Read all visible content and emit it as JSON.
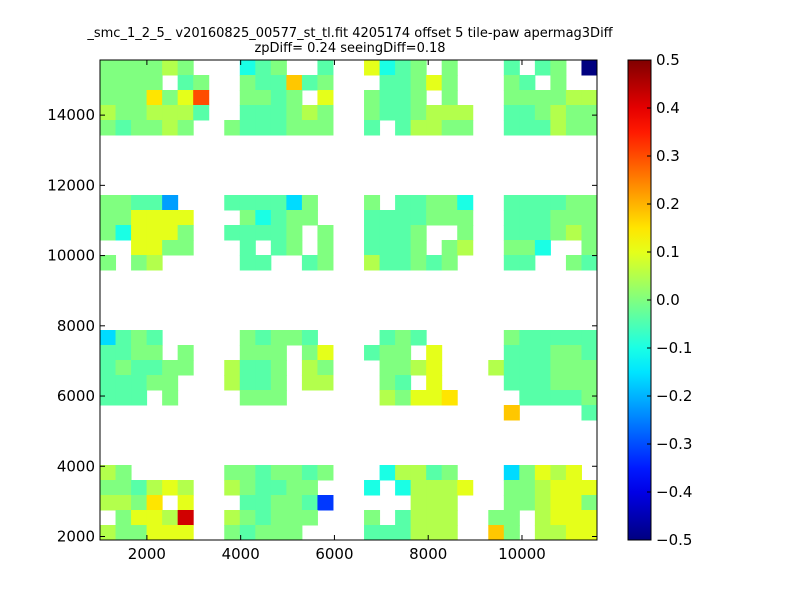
{
  "chart_data": {
    "type": "heatmap",
    "title_line1": "_smc_1_2_5_ v20160825_00577_st_tl.fit 4205174 offset 5 tile-paw apermag3Diff",
    "title_line2": "zpDiff= 0.24 seeingDiff=0.18",
    "xlabel": "",
    "ylabel": "",
    "xlim": [
      1000,
      11600
    ],
    "ylim": [
      1900,
      15570
    ],
    "xticks": [
      2000,
      4000,
      6000,
      8000,
      10000
    ],
    "yticks": [
      2000,
      4000,
      6000,
      8000,
      10000,
      12000,
      14000
    ],
    "colormap": "jet",
    "clim": [
      -0.5,
      0.5
    ],
    "colorbar_ticks": [
      0.5,
      0.4,
      0.3,
      0.2,
      0.1,
      0.0,
      -0.1,
      -0.2,
      -0.3,
      -0.4,
      -0.5
    ],
    "colorbar_labels": [
      "0.5",
      "0.4",
      "0.3",
      "0.2",
      "0.1",
      "0.0",
      "−0.1",
      "−0.2",
      "−0.3",
      "−0.4",
      "−0.5"
    ],
    "grid_shape": [
      32,
      32
    ],
    "grid_order": "rows top-to-bottom, columns left-to-right; '.' = no data",
    "code_values": {
      "g": 0.0,
      "h": 0.05,
      "y": 0.1,
      "Z": 0.15,
      "Y": 0.18,
      "O": 0.3,
      "R": 0.42,
      "t": -0.04,
      "c": -0.1,
      "C": -0.16,
      "b": -0.22,
      "B": -0.32,
      "N": -0.5
    },
    "grid": [
      "gggghg...ctg..t..yctg.g...t.tg.N",
      "gggg.tg..gttYtg...ttgyg...gt.g..",
      "gggZgyO..ggtg.y..gttg.g...gggghh",
      "hgghhht..tttghg..gttghhh..ttghgg",
      "gtgghg..gtttggg..t.thhgg..ttthgg",
      "................................",
      "................................",
      "................................",
      "................................",
      "ggttb...ttttCg...g.ttggc..ttttgg",
      "ggyyyy...gctgg...ttttggg..tttggg",
      "gcyyyg..ttttg.g..tttg..g..tttghg",
      "..yygg...t.tg.g..tttg.gh..ggc..g",
      "g.gh.....tt..tg..httgtg...tt..gt",
      "................................",
      "................................",
      "................................",
      "................................",
      "Ctgt.....gtggt....tgt.....gttttt",
      "ttgg.g...ggg.gy..tgg.y....tttggt",
      "tgttgg..httg.hg...gghy...htttggg",
      "tttgg...httg.hh...gt.y....tttggg",
      "ttt.g....ggg......hgyyZ....ttttgg",
      "..........................Y....t",
      "................................",
      "................................",
      "................................",
      "hg......ggtggtg...chhtg...Cgyhy.",
      "ggthyh..hgttgg...c.chhhy..gghyyy",
      "hhgZ.y...ttggtB.....hhh...gghyyg",
      ".gyyhR..hgtggg...g.thhh..gg.hyyy",
      "hggyyy..gtggg....ttthhh..Yg.hhyy"
    ]
  }
}
